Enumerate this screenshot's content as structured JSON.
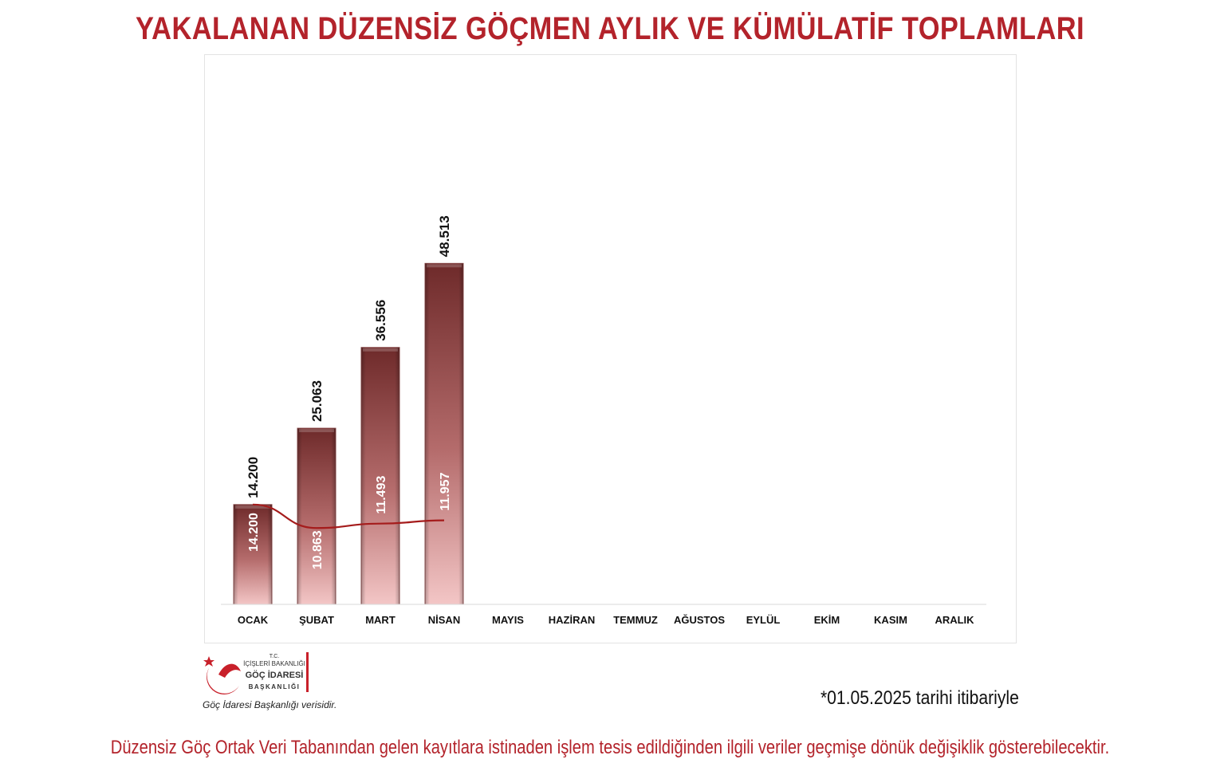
{
  "title": "YAKALANAN DÜZENSİZ GÖÇMEN AYLIK VE KÜMÜLATİF TOPLAMLARI",
  "colors": {
    "accent": "#b3232b",
    "bar_top": "#6e2a2a",
    "bar_bottom": "#f3c6c6",
    "line": "#a51c1c"
  },
  "chart_data": {
    "type": "bar",
    "categories": [
      "OCAK",
      "ŞUBAT",
      "MART",
      "NİSAN",
      "MAYIS",
      "HAZİRAN",
      "TEMMUZ",
      "AĞUSTOS",
      "EYLÜL",
      "EKİM",
      "KASIM",
      "ARALIK"
    ],
    "series": [
      {
        "type": "bar",
        "values": [
          14200,
          25063,
          36556,
          48513,
          null,
          null,
          null,
          null,
          null,
          null,
          null,
          null
        ],
        "labels": [
          "14.200",
          "25.063",
          "36.556",
          "48.513"
        ]
      },
      {
        "type": "line",
        "values": [
          14200,
          10863,
          11493,
          11957,
          null,
          null,
          null,
          null,
          null,
          null,
          null,
          null
        ],
        "labels": [
          "14.200",
          "10.863",
          "11.493",
          "11.957"
        ]
      }
    ],
    "ylim": [
      0,
      76000
    ],
    "grid": false,
    "legend": "none",
    "xlabel": "",
    "ylabel": ""
  },
  "logo": {
    "line1": "T.C.",
    "line2": "İÇİŞLERİ BAKANLIĞI",
    "line3": "GÖÇ İDARESİ",
    "line4": "BAŞKANLIĞI",
    "caption": "Göç İdaresi Başkanlığı verisidir."
  },
  "date_note": "*01.05.2025 tarihi itibariyle",
  "footer_note": "Düzensiz Göç Ortak Veri Tabanından gelen kayıtlara istinaden işlem tesis edildiğinden ilgili veriler geçmişe dönük değişiklik gösterebilecektir."
}
